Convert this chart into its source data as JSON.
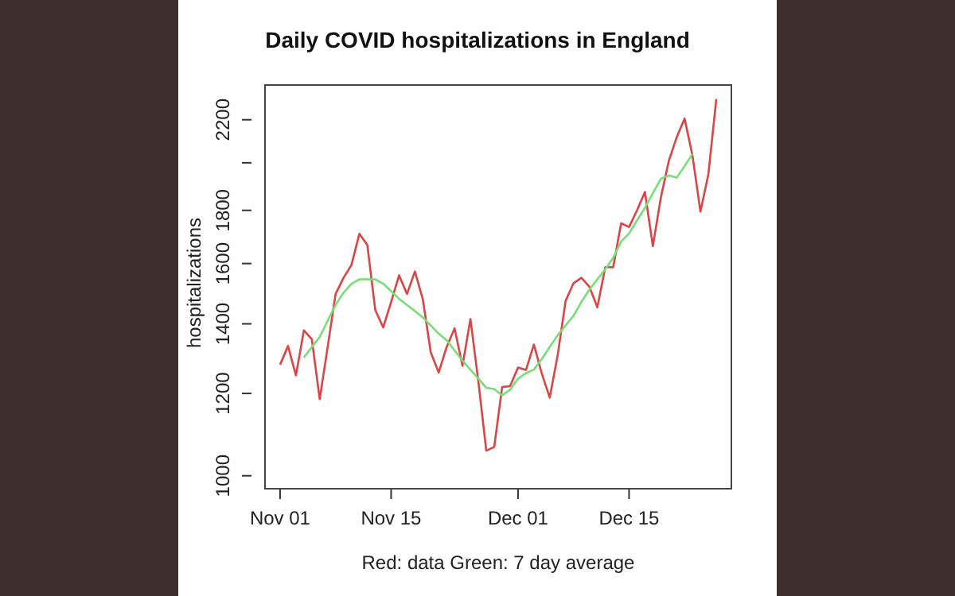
{
  "chart_data": {
    "type": "line",
    "title": "Daily COVID hospitalizations in England",
    "xlabel": "Red: data Green: 7 day average",
    "ylabel": "hospitalizations",
    "log": "y",
    "legend": false,
    "marker": "none",
    "line_style": "solid",
    "x": [
      "--11-01",
      "--11-02",
      "--11-03",
      "--11-04",
      "--11-05",
      "--11-06",
      "--11-07",
      "--11-08",
      "--11-09",
      "--11-10",
      "--11-11",
      "--11-12",
      "--11-13",
      "--11-14",
      "--11-15",
      "--11-16",
      "--11-17",
      "--11-18",
      "--11-19",
      "--11-20",
      "--11-21",
      "--11-22",
      "--11-23",
      "--11-24",
      "--11-25",
      "--11-26",
      "--11-27",
      "--11-28",
      "--11-29",
      "--11-30",
      "--12-01",
      "--12-02",
      "--12-03",
      "--12-04",
      "--12-05",
      "--12-06",
      "--12-07",
      "--12-08",
      "--12-09",
      "--12-10",
      "--12-11",
      "--12-12",
      "--12-13",
      "--12-14",
      "--12-15",
      "--12-16",
      "--12-17",
      "--12-18",
      "--12-19",
      "--12-20",
      "--12-21",
      "--12-22",
      "--12-23",
      "--12-24",
      "--12-25",
      "--12-26"
    ],
    "xlim": [
      "--10-30",
      "--12-28"
    ],
    "xticks": [
      {
        "value": "--11-01",
        "label": "Nov 01"
      },
      {
        "value": "--11-15",
        "label": "Nov 15"
      },
      {
        "value": "--12-01",
        "label": "Dec 01"
      },
      {
        "value": "--12-15",
        "label": "Dec 15"
      }
    ],
    "ylim": [
      970,
      2380
    ],
    "yticks": [
      1000,
      1200,
      1400,
      1600,
      1800,
      {
        "value": 2000,
        "label": null
      },
      2200
    ],
    "series": [
      {
        "color": "#dd4444",
        "values": [
          1279,
          1333,
          1249,
          1380,
          1353,
          1185,
          1330,
          1496,
          1550,
          1595,
          1709,
          1667,
          1444,
          1389,
          1469,
          1559,
          1496,
          1572,
          1478,
          1314,
          1257,
          1330,
          1386,
          1276,
          1415,
          1232,
          1057,
          1066,
          1217,
          1220,
          1271,
          1264,
          1337,
          1254,
          1189,
          1306,
          1473,
          1532,
          1550,
          1520,
          1452,
          1587,
          1587,
          1749,
          1735,
          1800,
          1875,
          1663,
          1850,
          2007,
          2116,
          2206,
          2031,
          1795,
          1950,
          2303
        ]
      },
      {
        "color": "#77dd77",
        "values": [
          null,
          null,
          null,
          1299,
          1330,
          1360,
          1410,
          1460,
          1500,
          1530,
          1545,
          1545,
          1545,
          1530,
          1505,
          1480,
          1460,
          1440,
          1420,
          1395,
          1370,
          1350,
          1320,
          1290,
          1265,
          1240,
          1215,
          1212,
          1195,
          1210,
          1240,
          1255,
          1265,
          1295,
          1330,
          1365,
          1395,
          1425,
          1470,
          1510,
          1545,
          1580,
          1620,
          1680,
          1710,
          1760,
          1810,
          1870,
          1930,
          1945,
          1935,
          1985,
          2040,
          null,
          null,
          null
        ]
      }
    ]
  }
}
